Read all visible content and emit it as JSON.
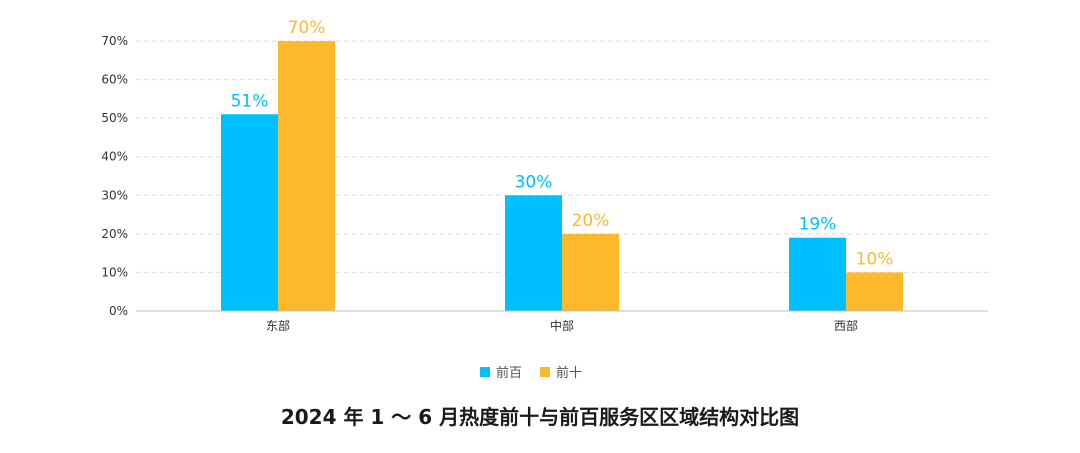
{
  "chart_data": {
    "type": "bar",
    "title": "2024 年 1 ～ 6 月热度前十与前百服务区区域结构对比图",
    "categories": [
      "东部",
      "中部",
      "西部"
    ],
    "series": [
      {
        "name": "前百",
        "values": [
          51,
          30,
          19
        ],
        "color": "#00BFFF"
      },
      {
        "name": "前十",
        "values": [
          70,
          20,
          10
        ],
        "color": "#FDB92C"
      }
    ],
    "ylim": [
      0,
      70
    ],
    "yticks": [
      0,
      10,
      20,
      30,
      40,
      50,
      60,
      70
    ],
    "tick_format": "{v}%",
    "data_label_format": "{v}%",
    "grid": true,
    "legend_position": "bottom"
  }
}
